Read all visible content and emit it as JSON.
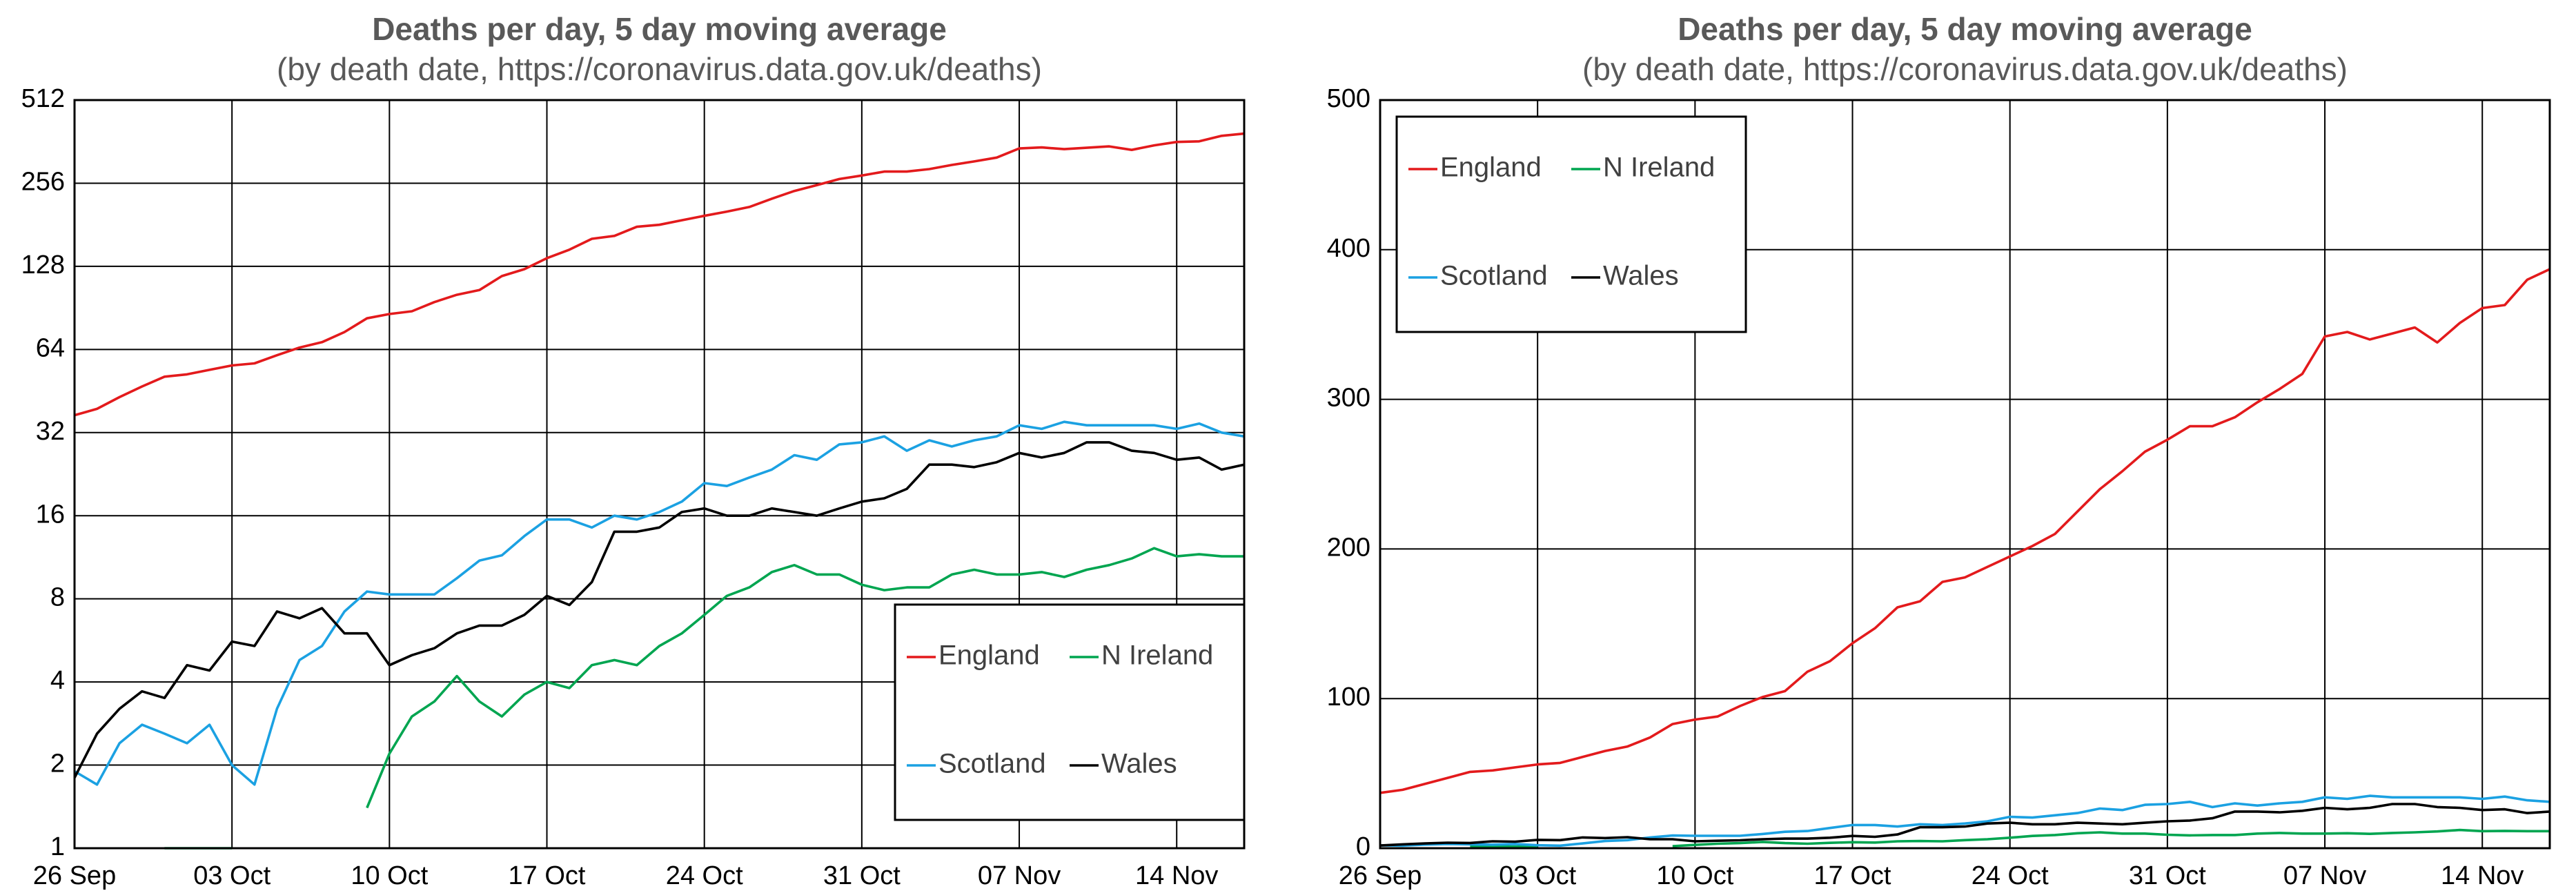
{
  "chart_data": [
    {
      "type": "line",
      "title": "Deaths per day, 5 day moving average",
      "subtitle": "(by death date, https://coronavirus.data.gov.uk/deaths)",
      "log_scale": true,
      "grid": true,
      "legend": "lower right",
      "categories": [
        "26 Sep",
        null,
        null,
        null,
        null,
        null,
        null,
        "03 Oct",
        null,
        null,
        null,
        null,
        null,
        null,
        "10 Oct",
        null,
        null,
        null,
        null,
        null,
        null,
        "17 Oct",
        null,
        null,
        null,
        null,
        null,
        null,
        "24 Oct",
        null,
        null,
        null,
        null,
        null,
        null,
        "31 Oct",
        null,
        null,
        null,
        null,
        null,
        null,
        "07 Nov",
        null,
        null,
        null,
        null,
        null,
        null,
        "14 Nov",
        null,
        null,
        null
      ],
      "ylim": [
        1,
        512
      ],
      "yticks": [
        1,
        2,
        4,
        8,
        16,
        32,
        64,
        128,
        256,
        512
      ],
      "series": [
        {
          "name": "England",
          "color": "#e31a1c",
          "values": [
            37,
            39,
            43,
            47,
            51,
            52,
            54,
            56,
            57,
            61,
            65,
            68,
            74,
            83,
            86,
            88,
            95,
            101,
            105,
            118,
            125,
            137,
            147,
            161,
            165,
            178,
            181,
            188,
            195,
            202,
            210,
            225,
            240,
            252,
            265,
            273,
            282,
            282,
            288,
            298,
            307,
            317,
            342,
            345,
            340,
            344,
            348,
            338,
            351,
            361,
            363,
            380,
            387
          ]
        },
        {
          "name": "N Ireland",
          "color": "#00a550",
          "values": [
            null,
            null,
            null,
            null,
            1,
            1,
            1,
            1,
            null,
            null,
            null,
            null,
            null,
            1.4,
            2.2,
            3.0,
            3.4,
            4.2,
            3.4,
            3.0,
            3.6,
            4.0,
            3.8,
            4.6,
            4.8,
            4.6,
            5.4,
            6.0,
            7.0,
            8.2,
            8.8,
            10.0,
            10.6,
            9.8,
            9.8,
            9.0,
            8.6,
            8.8,
            8.8,
            9.8,
            10.2,
            9.8,
            9.8,
            10.0,
            9.6,
            10.2,
            10.6,
            11.2,
            12.2,
            11.4,
            11.6,
            11.4,
            11.4
          ]
        },
        {
          "name": "Scotland",
          "color": "#1ba1e2",
          "values": [
            1.9,
            1.7,
            2.4,
            2.8,
            2.6,
            2.4,
            2.8,
            2.0,
            1.7,
            3.2,
            4.8,
            5.4,
            7.2,
            8.5,
            8.3,
            8.3,
            8.3,
            9.5,
            11,
            11.5,
            13.5,
            15.5,
            15.5,
            14.5,
            16,
            15.5,
            16.5,
            18,
            21,
            20.5,
            22,
            23.5,
            26.5,
            25.5,
            29,
            29.5,
            31,
            27.5,
            30,
            28.5,
            30,
            31,
            34,
            33,
            35,
            34,
            34,
            34,
            34,
            33,
            34.5,
            32,
            31
          ]
        },
        {
          "name": "Wales",
          "color": "#000000",
          "values": [
            1.8,
            2.6,
            3.2,
            3.7,
            3.5,
            4.6,
            4.4,
            5.6,
            5.4,
            7.2,
            6.8,
            7.4,
            6.0,
            6.0,
            4.6,
            5.0,
            5.3,
            6.0,
            6.4,
            6.4,
            7.0,
            8.2,
            7.6,
            9.2,
            14,
            14,
            14.5,
            16.5,
            17,
            16,
            16,
            17,
            16.5,
            16,
            17,
            18,
            18.5,
            20,
            24.5,
            24.5,
            24,
            25,
            27,
            26,
            27,
            29.5,
            29.5,
            27.5,
            27,
            25.5,
            26,
            23.5,
            24.5
          ]
        }
      ]
    },
    {
      "type": "line",
      "title": "Deaths per day, 5 day moving average",
      "subtitle": "(by death date, https://coronavirus.data.gov.uk/deaths)",
      "log_scale": false,
      "grid": true,
      "legend": "upper left",
      "categories": [
        "26 Sep",
        null,
        null,
        null,
        null,
        null,
        null,
        "03 Oct",
        null,
        null,
        null,
        null,
        null,
        null,
        "10 Oct",
        null,
        null,
        null,
        null,
        null,
        null,
        "17 Oct",
        null,
        null,
        null,
        null,
        null,
        null,
        "24 Oct",
        null,
        null,
        null,
        null,
        null,
        null,
        "31 Oct",
        null,
        null,
        null,
        null,
        null,
        null,
        "07 Nov",
        null,
        null,
        null,
        null,
        null,
        null,
        "14 Nov",
        null,
        null,
        null
      ],
      "ylim": [
        0,
        500
      ],
      "yticks": [
        0,
        100,
        200,
        300,
        400,
        500
      ],
      "series": [
        {
          "name": "England",
          "color": "#e31a1c",
          "values": [
            37,
            39,
            43,
            47,
            51,
            52,
            54,
            56,
            57,
            61,
            65,
            68,
            74,
            83,
            86,
            88,
            95,
            101,
            105,
            118,
            125,
            137,
            147,
            161,
            165,
            178,
            181,
            188,
            195,
            202,
            210,
            225,
            240,
            252,
            265,
            273,
            282,
            282,
            288,
            298,
            307,
            317,
            342,
            345,
            340,
            344,
            348,
            338,
            351,
            361,
            363,
            380,
            387
          ]
        },
        {
          "name": "N Ireland",
          "color": "#00a550",
          "values": [
            null,
            null,
            null,
            null,
            1,
            1,
            1,
            1,
            null,
            null,
            null,
            null,
            null,
            1.4,
            2.2,
            3.0,
            3.4,
            4.2,
            3.4,
            3.0,
            3.6,
            4.0,
            3.8,
            4.6,
            4.8,
            4.6,
            5.4,
            6.0,
            7.0,
            8.2,
            8.8,
            10.0,
            10.6,
            9.8,
            9.8,
            9.0,
            8.6,
            8.8,
            8.8,
            9.8,
            10.2,
            9.8,
            9.8,
            10.0,
            9.6,
            10.2,
            10.6,
            11.2,
            12.2,
            11.4,
            11.6,
            11.4,
            11.4
          ]
        },
        {
          "name": "Scotland",
          "color": "#1ba1e2",
          "values": [
            1.9,
            1.7,
            2.4,
            2.8,
            2.6,
            2.4,
            2.8,
            2.0,
            1.7,
            3.2,
            4.8,
            5.4,
            7.2,
            8.5,
            8.3,
            8.3,
            8.3,
            9.5,
            11,
            11.5,
            13.5,
            15.5,
            15.5,
            14.5,
            16,
            15.5,
            16.5,
            18,
            21,
            20.5,
            22,
            23.5,
            26.5,
            25.5,
            29,
            29.5,
            31,
            27.5,
            30,
            28.5,
            30,
            31,
            34,
            33,
            35,
            34,
            34,
            34,
            34,
            33,
            34.5,
            32,
            31
          ]
        },
        {
          "name": "Wales",
          "color": "#000000",
          "values": [
            1.8,
            2.6,
            3.2,
            3.7,
            3.5,
            4.6,
            4.4,
            5.6,
            5.4,
            7.2,
            6.8,
            7.4,
            6.0,
            6.0,
            4.6,
            5.0,
            5.3,
            6.0,
            6.4,
            6.4,
            7.0,
            8.2,
            7.6,
            9.2,
            14,
            14,
            14.5,
            16.5,
            17,
            16,
            16,
            17,
            16.5,
            16,
            17,
            18,
            18.5,
            20,
            24.5,
            24.5,
            24,
            25,
            27,
            26,
            27,
            29.5,
            29.5,
            27.5,
            27,
            25.5,
            26,
            23.5,
            24.5
          ]
        }
      ]
    }
  ]
}
